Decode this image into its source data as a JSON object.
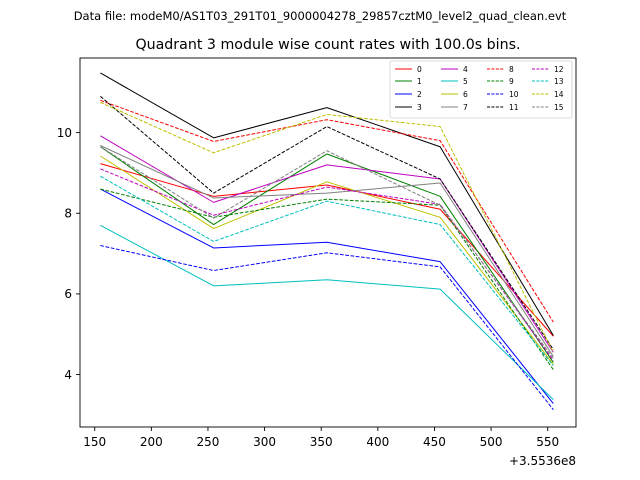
{
  "suptitle": "Data file: modeM0/AS1T03_291T01_9000004278_29857cztM0_level2_quad_clean.evt",
  "chart_data": {
    "type": "line",
    "title": "Quadrant 3 module wise count rates with 100.0s bins.",
    "xlabel": "",
    "ylabel": "",
    "x_offset_label": "+3.5536e8",
    "x": [
      155,
      255,
      355,
      455,
      555
    ],
    "xlim": [
      137,
      575
    ],
    "ylim": [
      2.7,
      11.85
    ],
    "x_ticks": [
      150,
      200,
      250,
      300,
      350,
      400,
      450,
      500,
      550
    ],
    "x_tick_labels": [
      "150",
      "200",
      "250",
      "300",
      "350",
      "400",
      "450",
      "500",
      "550"
    ],
    "y_ticks": [
      4,
      6,
      8,
      10
    ],
    "y_tick_labels": [
      "4",
      "6",
      "8",
      "10"
    ],
    "legend_position": "top-right",
    "series": [
      {
        "name": "0",
        "color": "#ff0000",
        "dash": "solid",
        "values": [
          9.23,
          8.42,
          8.7,
          8.1,
          4.95
        ]
      },
      {
        "name": "1",
        "color": "#008000",
        "dash": "solid",
        "values": [
          9.65,
          7.72,
          9.47,
          8.42,
          4.3
        ]
      },
      {
        "name": "2",
        "color": "#0000ff",
        "dash": "solid",
        "values": [
          8.6,
          7.14,
          7.28,
          6.8,
          3.28
        ]
      },
      {
        "name": "3",
        "color": "#000000",
        "dash": "solid",
        "values": [
          11.48,
          9.87,
          10.62,
          9.65,
          4.97
        ]
      },
      {
        "name": "4",
        "color": "#bf00bf",
        "dash": "solid",
        "values": [
          9.92,
          8.27,
          9.2,
          8.85,
          4.55
        ]
      },
      {
        "name": "5",
        "color": "#00bfbf",
        "dash": "solid",
        "values": [
          7.7,
          6.2,
          6.35,
          6.12,
          3.38
        ]
      },
      {
        "name": "6",
        "color": "#bfbf00",
        "dash": "solid",
        "values": [
          9.42,
          7.62,
          8.78,
          7.9,
          4.25
        ]
      },
      {
        "name": "7",
        "color": "#808080",
        "dash": "solid",
        "values": [
          9.68,
          8.38,
          8.5,
          8.75,
          4.45
        ]
      },
      {
        "name": "8",
        "color": "#ff0000",
        "dash": "dashed",
        "values": [
          10.8,
          9.78,
          10.32,
          9.8,
          5.3
        ]
      },
      {
        "name": "9",
        "color": "#008000",
        "dash": "dashed",
        "values": [
          8.6,
          7.9,
          8.35,
          8.2,
          4.12
        ]
      },
      {
        "name": "10",
        "color": "#0000ff",
        "dash": "dashed",
        "values": [
          7.2,
          6.58,
          7.02,
          6.67,
          3.13
        ]
      },
      {
        "name": "11",
        "color": "#000000",
        "dash": "dashed",
        "values": [
          10.9,
          8.5,
          10.15,
          8.85,
          4.62
        ]
      },
      {
        "name": "12",
        "color": "#bf00bf",
        "dash": "dashed",
        "values": [
          9.1,
          7.95,
          8.65,
          8.22,
          4.35
        ]
      },
      {
        "name": "13",
        "color": "#00bfbf",
        "dash": "dashed",
        "values": [
          8.92,
          7.3,
          8.3,
          7.72,
          4.22
        ]
      },
      {
        "name": "14",
        "color": "#bfbf00",
        "dash": "dashed",
        "values": [
          10.75,
          9.5,
          10.45,
          10.15,
          4.55
        ]
      },
      {
        "name": "15",
        "color": "#808080",
        "dash": "dashed",
        "values": [
          9.65,
          7.88,
          9.55,
          8.2,
          4.4
        ]
      }
    ]
  }
}
